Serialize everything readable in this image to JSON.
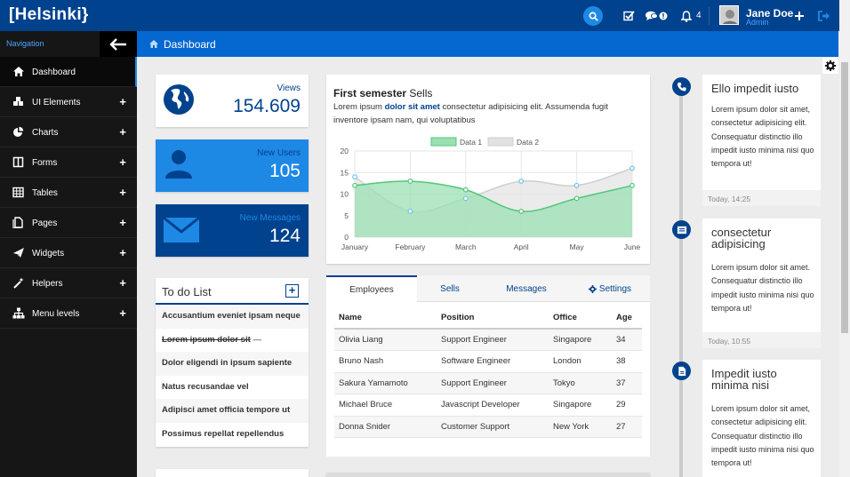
{
  "app": {
    "logo": "[Helsinki}"
  },
  "topbar": {
    "notifications_count": "4",
    "user_name": "Jane Doe",
    "user_role": "Admin",
    "icons": [
      "search-icon",
      "tasks-icon",
      "comments-icon",
      "alert-icon",
      "bell-icon",
      "plus-icon",
      "logout-icon"
    ]
  },
  "sidebar": {
    "label": "Navigation",
    "items": [
      {
        "label": "Dashboard",
        "icon": "home-icon",
        "expandable": false,
        "active": true
      },
      {
        "label": "UI Elements",
        "icon": "cubes-icon",
        "expandable": true
      },
      {
        "label": "Charts",
        "icon": "pie-chart-icon",
        "expandable": true
      },
      {
        "label": "Forms",
        "icon": "columns-icon",
        "expandable": true
      },
      {
        "label": "Tables",
        "icon": "table-icon",
        "expandable": true
      },
      {
        "label": "Pages",
        "icon": "pages-icon",
        "expandable": true
      },
      {
        "label": "Widgets",
        "icon": "paper-plane-icon",
        "expandable": true
      },
      {
        "label": "Helpers",
        "icon": "magic-wand-icon",
        "expandable": true
      },
      {
        "label": "Menu levels",
        "icon": "sitemap-icon",
        "expandable": true
      }
    ]
  },
  "breadcrumb": {
    "current": "Dashboard"
  },
  "stats": [
    {
      "label": "Views",
      "value": "154.609",
      "icon": "globe-icon",
      "bg": "#ffffff",
      "fg": "#00428d"
    },
    {
      "label": "New Users",
      "value": "105",
      "icon": "user-icon",
      "bg": "#1e88e5",
      "fg": "#ffffff"
    },
    {
      "label": "New Messages",
      "value": "124",
      "icon": "envelope-icon",
      "bg": "#00428d",
      "fg": "#ffffff"
    }
  ],
  "todo": {
    "title": "To do List",
    "add_label": "+",
    "items": [
      {
        "text": "Accusantium eveniet ipsam neque",
        "done": false
      },
      {
        "text": "Lorem ipsum dolor sit",
        "done": true,
        "suffix": "—"
      },
      {
        "text": "Dolor eligendi in ipsum sapiente",
        "done": false
      },
      {
        "text": "Natus recusandae vel",
        "done": false
      },
      {
        "text": "Adipisci amet officia tempore ut",
        "done": false
      },
      {
        "text": "Possimus repellat repellendus",
        "done": false
      }
    ]
  },
  "chart_card": {
    "title_bold": "First semester",
    "title_rest": " Sells",
    "desc_pre": "Lorem ipsum ",
    "desc_bold": "dolor sit amet",
    "desc_post": " consectetur adipisicing elit. Assumenda fugit inventore ipsam nam, qui voluptatibus"
  },
  "chart_data": {
    "type": "area",
    "categories": [
      "January",
      "February",
      "March",
      "April",
      "May",
      "June"
    ],
    "ylim": [
      0,
      20
    ],
    "yticks": [
      0,
      5,
      10,
      15,
      20
    ],
    "legend_placement": "top",
    "series": [
      {
        "name": "Data 1",
        "values": [
          12,
          13,
          11,
          6,
          9,
          12
        ],
        "color": "#52c77a",
        "fill": "#9be0b3"
      },
      {
        "name": "Data 2",
        "values": [
          14,
          6,
          9,
          13,
          12,
          16
        ],
        "color": "#cfcfcf",
        "fill": "#e2e2e2"
      }
    ]
  },
  "tabs": [
    {
      "label": "Employees",
      "active": true
    },
    {
      "label": "Sells",
      "active": false
    },
    {
      "label": "Messages",
      "active": false
    },
    {
      "label": "Settings",
      "active": false,
      "icon": "gear-icon"
    }
  ],
  "table": {
    "headers": [
      "Name",
      "Position",
      "Office",
      "Age"
    ],
    "rows": [
      [
        "Olivia Liang",
        "Support Engineer",
        "Singapore",
        "34"
      ],
      [
        "Bruno Nash",
        "Software Engineer",
        "London",
        "38"
      ],
      [
        "Sakura Yamamoto",
        "Support Engineer",
        "Tokyo",
        "37"
      ],
      [
        "Michael Bruce",
        "Javascript Developer",
        "Singapore",
        "29"
      ],
      [
        "Donna Snider",
        "Customer Support",
        "New York",
        "27"
      ]
    ]
  },
  "timeline": [
    {
      "title": "Ello impedit iusto",
      "body": "Lorem ipsum dolor sit amet, consectetur adipisicing elit. Consequatur distinctio illo impedit iusto minima nisi quo tempora ut!",
      "time": "Today, 14:25",
      "icon": "phone-icon"
    },
    {
      "title": "consectetur adipisicing",
      "body": "Lorem ipsum dolor sit amet. Consequatur distinctio illo impedit iusto minima nisi quo tempora ut!",
      "time": "Today, 10:55",
      "icon": "card-icon"
    },
    {
      "title": "Impedit iusto minima nisi",
      "body": "Lorem ipsum dolor sit amet, consectetur adipisicing elit. Consequatur distinctio illo impedit iusto minima nisi quo tempora ut!",
      "time": "",
      "icon": "file-icon"
    }
  ]
}
